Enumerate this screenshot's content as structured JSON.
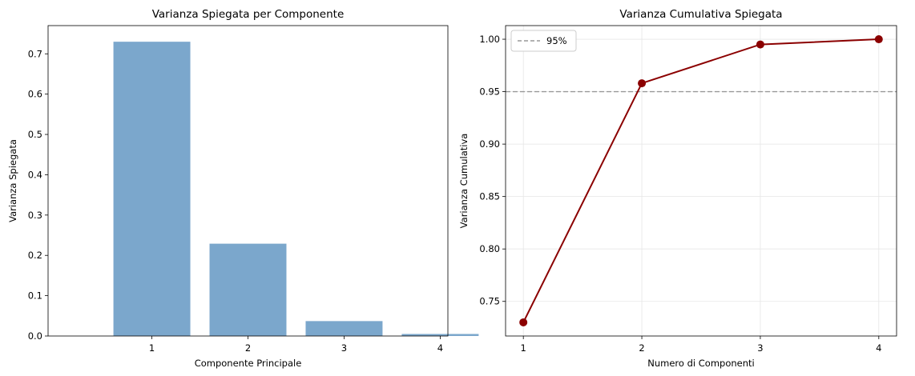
{
  "chart_data": [
    {
      "type": "bar",
      "title": "Varianza Spiegata per Componente",
      "xlabel": "Componente Principale",
      "ylabel": "Varianza Spiegata",
      "categories": [
        "1",
        "2",
        "3",
        "4"
      ],
      "values": [
        0.73,
        0.229,
        0.037,
        0.005
      ],
      "ylim": [
        0,
        0.77
      ],
      "yticks": [
        "0.0",
        "0.1",
        "0.2",
        "0.3",
        "0.4",
        "0.5",
        "0.6",
        "0.7"
      ],
      "grid": false,
      "color": "#7ba7cc"
    },
    {
      "type": "line",
      "title": "Varianza Cumulativa Spiegata",
      "xlabel": "Numero di Componenti",
      "ylabel": "Varianza Cumulativa",
      "x": [
        1,
        2,
        3,
        4
      ],
      "values": [
        0.73,
        0.958,
        0.995,
        1.0
      ],
      "xticks": [
        "1",
        "2",
        "3",
        "4"
      ],
      "yticks": [
        "0.75",
        "0.80",
        "0.85",
        "0.90",
        "0.95",
        "1.00"
      ],
      "ylim": [
        0.717,
        1.013
      ],
      "grid": true,
      "color": "#8b0000",
      "threshold": {
        "label": "95%",
        "value": 0.95,
        "color": "#999999"
      },
      "legend_placement": "top-left"
    }
  ]
}
